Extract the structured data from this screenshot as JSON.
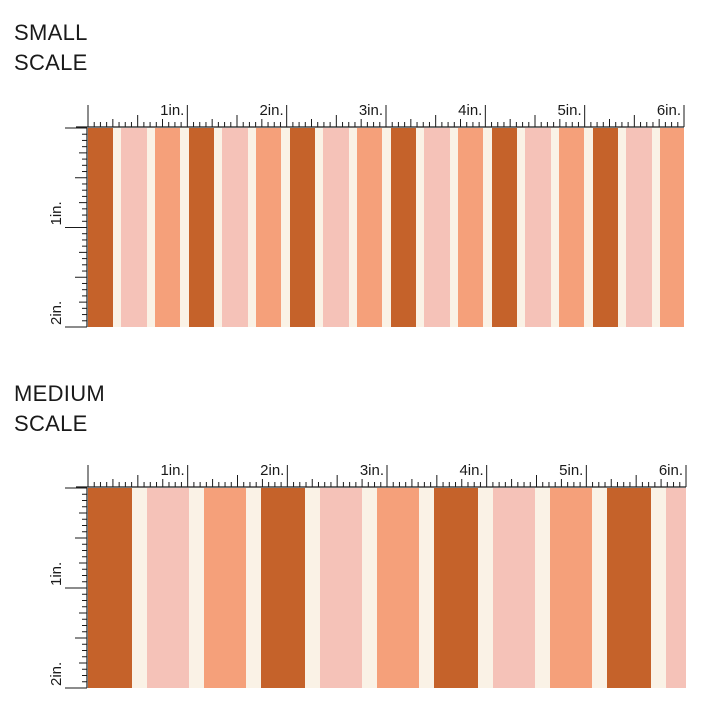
{
  "colors": {
    "rust": "#c5622a",
    "cream": "#faf2e6",
    "peach": "#f5a07a",
    "pink": "#f5c2b8",
    "ink": "#1a1a1a"
  },
  "sections": [
    {
      "id": "small",
      "label_line1": "SMALL",
      "label_line2": "SCALE",
      "top_labels": [
        "1in.",
        "2in.",
        "3in.",
        "4in.",
        "5in.",
        "6in."
      ],
      "side_labels": [
        "1in.",
        "2in."
      ],
      "stripe_pattern": [
        "rust",
        "cream",
        "pink",
        "cream",
        "peach",
        "cream"
      ],
      "repeat_in_inches": 0.667
    },
    {
      "id": "medium",
      "label_line1": "MEDIUM",
      "label_line2": "SCALE",
      "top_labels": [
        "1in.",
        "2in.",
        "3in.",
        "4in.",
        "5in.",
        "6in."
      ],
      "side_labels": [
        "1in.",
        "2in."
      ],
      "stripe_pattern": [
        "rust",
        "cream",
        "pink",
        "cream",
        "peach",
        "cream"
      ],
      "repeat_in_inches": 1.75
    }
  ]
}
